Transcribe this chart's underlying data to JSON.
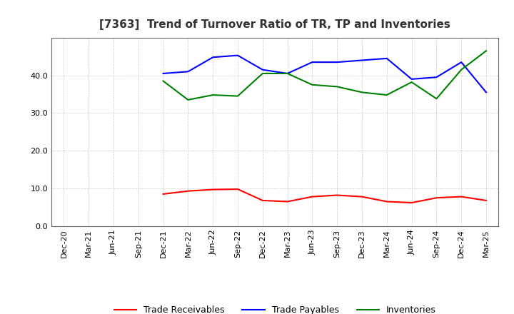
{
  "title": "[7363]  Trend of Turnover Ratio of TR, TP and Inventories",
  "x_labels": [
    "Dec-20",
    "Mar-21",
    "Jun-21",
    "Sep-21",
    "Dec-21",
    "Mar-22",
    "Jun-22",
    "Sep-22",
    "Dec-22",
    "Mar-23",
    "Jun-23",
    "Sep-23",
    "Dec-23",
    "Mar-24",
    "Jun-24",
    "Sep-24",
    "Dec-24",
    "Mar-25"
  ],
  "tr_x_idx": [
    4,
    5,
    6,
    7,
    8,
    9,
    10,
    11,
    12,
    13,
    14,
    15,
    16,
    17
  ],
  "tr_y": [
    8.5,
    9.3,
    9.7,
    9.8,
    6.8,
    6.5,
    7.8,
    8.2,
    7.8,
    6.5,
    6.2,
    7.5,
    7.8,
    6.8
  ],
  "tp_x_idx": [
    4,
    5,
    6,
    7,
    8,
    9,
    10,
    11,
    12,
    13,
    14,
    15,
    16,
    17
  ],
  "tp_y": [
    40.5,
    41.0,
    44.8,
    45.3,
    41.5,
    40.5,
    43.5,
    43.5,
    44.0,
    44.5,
    39.0,
    39.5,
    43.5,
    35.5
  ],
  "inv_x_idx": [
    4,
    5,
    6,
    7,
    8,
    9,
    10,
    11,
    12,
    13,
    14,
    15,
    16,
    17
  ],
  "inv_y": [
    38.5,
    33.5,
    34.8,
    34.5,
    40.5,
    40.5,
    37.5,
    37.0,
    35.5,
    34.8,
    38.2,
    33.8,
    41.5,
    46.5
  ],
  "tr_color": "#ff0000",
  "tp_color": "#0000ff",
  "inv_color": "#008000",
  "ylim": [
    0,
    50
  ],
  "yticks": [
    0.0,
    10.0,
    20.0,
    30.0,
    40.0
  ],
  "background_color": "#ffffff",
  "grid_color": "#bbbbbb",
  "title_color": "#333333",
  "title_fontsize": 11,
  "legend_fontsize": 9,
  "tick_fontsize": 8,
  "linewidth": 1.5
}
